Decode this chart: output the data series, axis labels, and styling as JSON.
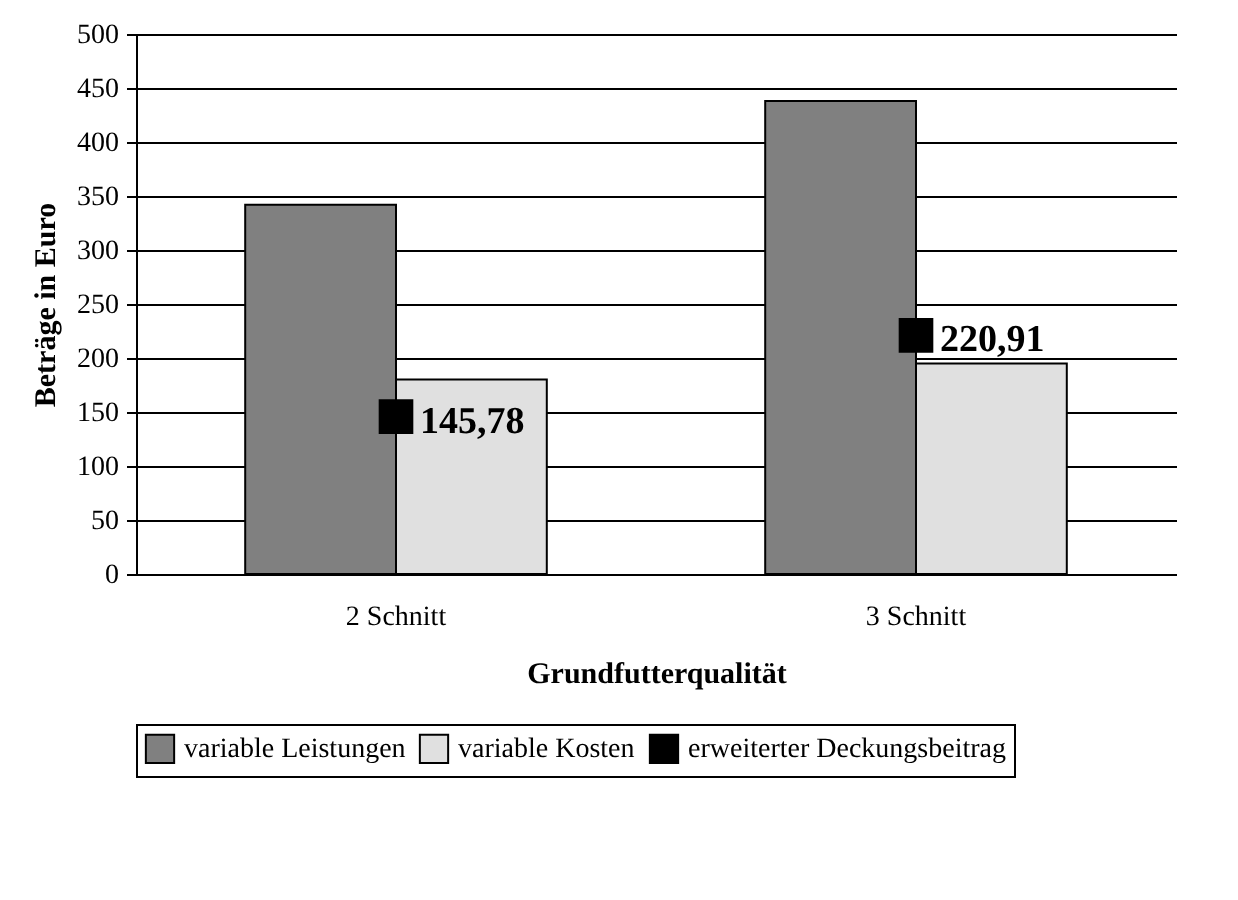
{
  "chart_data": {
    "type": "bar",
    "xlabel": "Grundfutterqualität",
    "ylabel": "Beträge in Euro",
    "categories": [
      "2 Schnitt",
      "3 Schnitt"
    ],
    "series": [
      {
        "name": "variable Leistungen",
        "color": "#808080",
        "values": [
          342,
          438
        ]
      },
      {
        "name": "variable Kosten",
        "color": "#e0e0e0",
        "values": [
          180,
          195
        ]
      },
      {
        "name": "erweiterter Deckungsbeitrag",
        "color": "#000000",
        "type": "scatter",
        "marker": "square",
        "values": [
          145.78,
          220.91
        ],
        "value_labels": [
          "145,78",
          "220,91"
        ]
      }
    ],
    "ylim": [
      0,
      500
    ],
    "yticks": [
      0,
      50,
      100,
      150,
      200,
      250,
      300,
      350,
      400,
      450,
      500
    ],
    "grid": "y",
    "legend": "bottom"
  }
}
